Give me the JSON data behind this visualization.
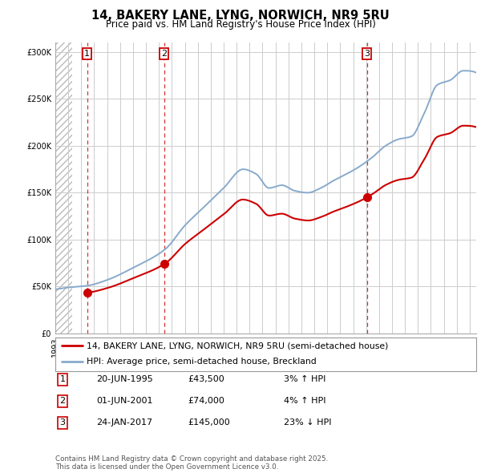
{
  "title": "14, BAKERY LANE, LYNG, NORWICH, NR9 5RU",
  "subtitle": "Price paid vs. HM Land Registry's House Price Index (HPI)",
  "ylim": [
    0,
    310000
  ],
  "ytick_labels": [
    "£0",
    "£50K",
    "£100K",
    "£150K",
    "£200K",
    "£250K",
    "£300K"
  ],
  "legend_line1": "14, BAKERY LANE, LYNG, NORWICH, NR9 5RU (semi-detached house)",
  "legend_line2": "HPI: Average price, semi-detached house, Breckland",
  "property_color": "#cc0000",
  "hpi_color": "#88aacc",
  "t1_year": 1995.46,
  "t2_year": 2001.41,
  "t3_year": 2017.06,
  "t1_price": 43500,
  "t2_price": 74000,
  "t3_price": 145000,
  "xlim_left": 1993.0,
  "xlim_right": 2025.5,
  "hatch_end": 1994.3,
  "footnote": "Contains HM Land Registry data © Crown copyright and database right 2025.\nThis data is licensed under the Open Government Licence v3.0.",
  "table_rows": [
    {
      "num": "1",
      "date": "20-JUN-1995",
      "price": "£43,500",
      "hpi": "3% ↑ HPI"
    },
    {
      "num": "2",
      "date": "01-JUN-2001",
      "price": "£74,000",
      "hpi": "4% ↑ HPI"
    },
    {
      "num": "3",
      "date": "24-JAN-2017",
      "price": "£145,000",
      "hpi": "23% ↓ HPI"
    }
  ]
}
